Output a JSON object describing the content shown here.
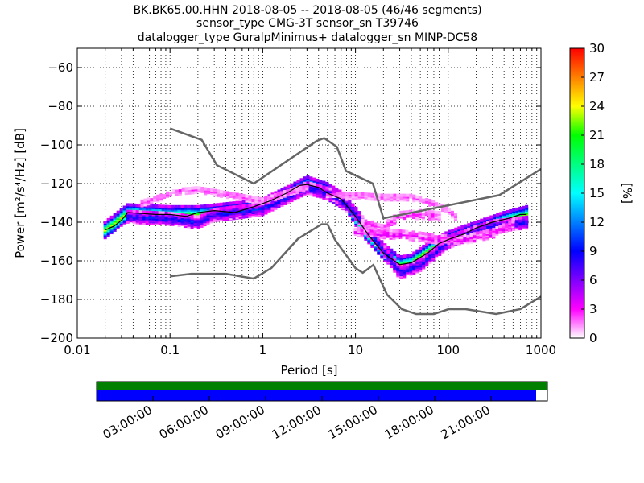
{
  "chart_data": {
    "type": "heatmap",
    "title": [
      "BK.BK65.00.HHN   2018-08-05 -- 2018-08-05  (46/46 segments)",
      "sensor_type CMG-3T sensor_sn T39746",
      "datalogger_type GuralpMinimus+ datalogger_sn MINP-DC58"
    ],
    "xlabel": "Period [s]",
    "ylabel": "Power [m²/s⁴/Hz] [dB]",
    "x_scale": "log",
    "xlim": [
      0.01,
      1000
    ],
    "ylim": [
      -200,
      -50
    ],
    "x_ticks": [
      0.01,
      0.1,
      1,
      10,
      100,
      1000
    ],
    "x_tick_labels": [
      "0.01",
      "0.1",
      "1",
      "10",
      "100",
      "1000"
    ],
    "y_ticks": [
      -200,
      -180,
      -160,
      -140,
      -120,
      -100,
      -80,
      -60
    ],
    "y_tick_labels": [
      "−200",
      "−180",
      "−160",
      "−140",
      "−120",
      "−100",
      "−80",
      "−60"
    ],
    "grid": true,
    "colorbar": {
      "label": "[%]",
      "range": [
        0,
        30
      ],
      "ticks": [
        0,
        3,
        6,
        9,
        12,
        15,
        18,
        21,
        24,
        27,
        30
      ],
      "tick_labels": [
        "0",
        "3",
        "6",
        "9",
        "12",
        "15",
        "18",
        "21",
        "24",
        "27",
        "30"
      ],
      "colormap": [
        "#ffffff",
        "#ff00ff",
        "#8000ff",
        "#0000ff",
        "#0080ff",
        "#00ffff",
        "#00ff80",
        "#00ff00",
        "#ffff00",
        "#ff8000",
        "#ff0000"
      ]
    },
    "series": [
      {
        "role": "new_high_noise_model",
        "color": "#666666",
        "x": [
          0.1,
          0.22,
          0.32,
          0.8,
          3.8,
          4.6,
          6.3,
          7.9,
          15.4,
          20,
          354.8,
          1000
        ],
        "y": [
          -91.5,
          -97.4,
          -110.5,
          -120,
          -98,
          -96.5,
          -101,
          -113.5,
          -120,
          -138,
          -126,
          -112.5
        ]
      },
      {
        "role": "new_low_noise_model",
        "color": "#666666",
        "x": [
          0.1,
          0.17,
          0.4,
          0.8,
          1.24,
          2.4,
          4.3,
          5.0,
          6.0,
          10.0,
          12.0,
          15.6,
          21.9,
          31.6,
          45,
          70,
          101,
          154,
          328,
          600,
          1000
        ],
        "y": [
          -168,
          -166.7,
          -166.7,
          -169.2,
          -163.7,
          -148.6,
          -141.1,
          -141.1,
          -149,
          -163.8,
          -166.2,
          -162.1,
          -177.5,
          -185,
          -187.5,
          -187.5,
          -185,
          -185,
          -187.5,
          -185,
          -178.5
        ]
      },
      {
        "role": "mode",
        "color": "#000000",
        "x": [
          0.02,
          0.025,
          0.03,
          0.035,
          0.05,
          0.07,
          0.1,
          0.15,
          0.2,
          0.3,
          0.5,
          0.8,
          1.2,
          1.8,
          2.5,
          3,
          4,
          5,
          7,
          10,
          14,
          20,
          30,
          40,
          60,
          80,
          100,
          150,
          200,
          300,
          450,
          600,
          700
        ],
        "y": [
          -144,
          -142,
          -139,
          -135,
          -135.5,
          -136,
          -136,
          -137,
          -135,
          -134,
          -135,
          -132,
          -129,
          -125,
          -121,
          -120.5,
          -122,
          -125,
          -128,
          -137,
          -147,
          -156,
          -162,
          -161,
          -156,
          -151,
          -149,
          -146,
          -143,
          -140,
          -138,
          -136,
          -136
        ]
      }
    ],
    "density_bands": [
      {
        "x": [
          0.02,
          0.035,
          0.1,
          0.2,
          0.5,
          1,
          2,
          3,
          5,
          8,
          12,
          20,
          30,
          40,
          60,
          100,
          200,
          400,
          700
        ],
        "y": [
          -144,
          -135,
          -136,
          -136,
          -134,
          -132,
          -125,
          -120.5,
          -124,
          -130,
          -143,
          -155,
          -162,
          -161,
          -155,
          -149,
          -144,
          -139,
          -136
        ],
        "spread": 4,
        "level": 24,
        "jitter": 3
      },
      {
        "x": [
          0.035,
          0.1,
          0.2,
          0.3,
          1,
          3,
          6,
          10,
          20,
          30,
          50,
          100,
          300,
          700
        ],
        "y": [
          -137,
          -138,
          -140,
          -136,
          -133,
          -122,
          -126,
          -135,
          -154,
          -166,
          -162,
          -150,
          -142,
          -140
        ],
        "spread": 3,
        "level": 9,
        "jitter": 4
      },
      {
        "x": [
          0.05,
          0.08,
          0.12,
          0.2,
          0.35,
          0.6,
          1,
          2,
          3
        ],
        "y": [
          -130,
          -127,
          -124,
          -123,
          -125,
          -127,
          -129,
          -124,
          -122
        ],
        "spread": 1.5,
        "level": 2,
        "jitter": 2
      },
      {
        "x": [
          5,
          10,
          20,
          40,
          80,
          120
        ],
        "y": [
          -126,
          -126,
          -127,
          -127,
          -131,
          -137
        ],
        "spread": 1.5,
        "level": 2,
        "jitter": 2
      },
      {
        "x": [
          10,
          20,
          40,
          80,
          150,
          300,
          500
        ],
        "y": [
          -145,
          -146,
          -147,
          -149,
          -149,
          -146,
          -141
        ],
        "spread": 2,
        "level": 3,
        "jitter": 3
      },
      {
        "x": [
          12,
          20,
          30,
          50,
          80
        ],
        "y": [
          -141,
          -143,
          -137,
          -136,
          -137
        ],
        "spread": 2,
        "level": 2,
        "jitter": 3
      }
    ]
  },
  "timeline": {
    "tick_labels": [
      "03:00:00",
      "06:00:00",
      "09:00:00",
      "12:00:00",
      "15:00:00",
      "18:00:00",
      "21:00:00"
    ],
    "tick_hours": [
      3,
      6,
      9,
      12,
      15,
      18,
      21
    ],
    "range_hours": [
      0,
      24
    ],
    "data_coverage": {
      "start": 0,
      "end": 24,
      "color": "#007f00"
    },
    "psd_coverage": {
      "start": 0,
      "end": 23.4,
      "color": "#0000ff"
    }
  }
}
